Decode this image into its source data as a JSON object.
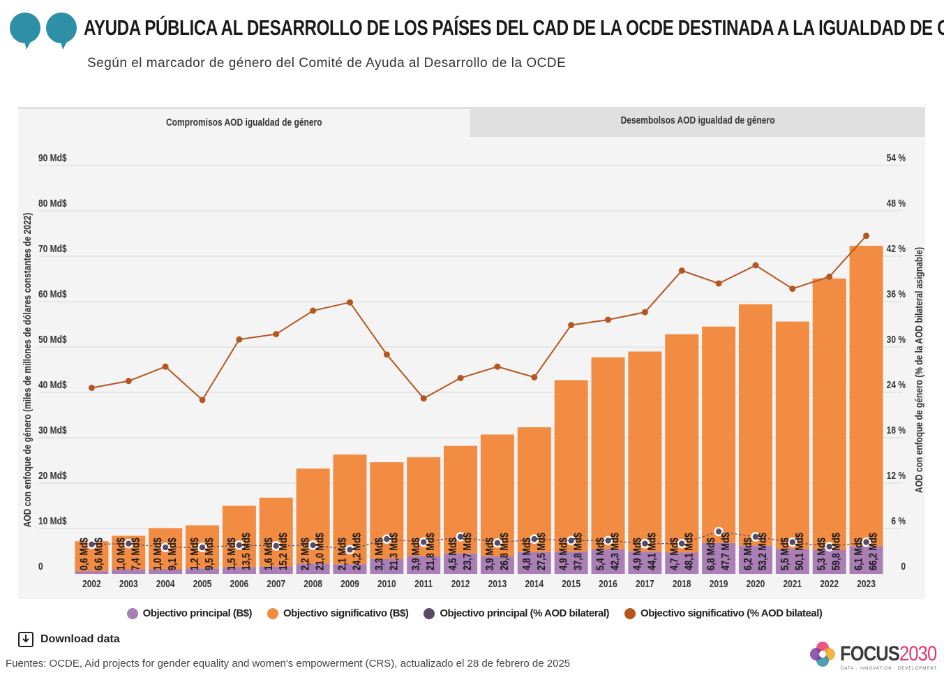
{
  "header": {
    "title": "AYUDA PÚBLICA AL DESARROLLO DE LOS PAÍSES DEL CAD DE LA OCDE DESTINADA A LA IGUALDAD DE GÉNERO",
    "subtitle": "Según el marcador de género del Comité de Ayuda al Desarrollo de la OCDE",
    "logo_color": "#2e8fa6"
  },
  "tabs": [
    {
      "label": "Compromisos AOD igualdad de género",
      "active": true
    },
    {
      "label": "Desembolsos AOD igualdad de género",
      "active": false
    }
  ],
  "chart_data": {
    "type": "bar+line",
    "stacked": true,
    "ylabel": "AOD con enfoque de género (miles de millones de dólares constantes de 2022)",
    "y2label": "AOD con enfoque de género (% de la AOD bilateral asignable)",
    "ylim": [
      0,
      90
    ],
    "y2lim": [
      0,
      54
    ],
    "yticks": [
      "0",
      "10 Md$",
      "20 Md$",
      "30 Md$",
      "40 Md$",
      "50 Md$",
      "60 Md$",
      "70 Md$",
      "80 Md$",
      "90 Md$"
    ],
    "y2ticks": [
      "0",
      "6 %",
      "12 %",
      "18 %",
      "24 %",
      "30 %",
      "36 %",
      "42 %",
      "48 %",
      "54 %"
    ],
    "grid": true,
    "legend_position": "bottom",
    "categories": [
      "2002",
      "2003",
      "2004",
      "2005",
      "2006",
      "2007",
      "2008",
      "2009",
      "2010",
      "2011",
      "2012",
      "2013",
      "2014",
      "2015",
      "2016",
      "2017",
      "2018",
      "2019",
      "2020",
      "2021",
      "2022",
      "2023"
    ],
    "series": [
      {
        "name": "Objectivo principal (B$)",
        "kind": "bar",
        "axis": "left",
        "color": "#a97fb5",
        "values": [
          0.6,
          1.0,
          1.0,
          1.2,
          1.5,
          1.6,
          2.2,
          2.1,
          3.3,
          3.9,
          4.5,
          3.9,
          4.8,
          4.9,
          5.4,
          4.9,
          4.7,
          6.8,
          6.2,
          5.5,
          5.3,
          6.1
        ]
      },
      {
        "name": "Objectivo significativo (B$)",
        "kind": "bar",
        "axis": "left",
        "color": "#f28c42",
        "values": [
          6.6,
          7.4,
          9.1,
          9.5,
          13.5,
          15.2,
          21.0,
          24.2,
          21.3,
          21.8,
          23.7,
          26.8,
          27.5,
          37.8,
          42.3,
          44.1,
          48.1,
          47.7,
          53.2,
          50.1,
          59.8,
          66.2
        ]
      },
      {
        "name": "Objectivo principal (% AOD bilateral)",
        "kind": "line",
        "axis": "right",
        "color": "#5a4a66",
        "values": [
          3.9,
          4.0,
          3.5,
          3.5,
          3.8,
          3.7,
          3.8,
          3.2,
          4.6,
          4.2,
          4.9,
          4.1,
          4.6,
          4.4,
          4.4,
          4.0,
          4.0,
          5.6,
          4.9,
          4.2,
          3.6,
          4.2
        ]
      },
      {
        "name": "Objectivo significativo (% AOD bilateal)",
        "kind": "line",
        "axis": "right",
        "color": "#b5561f",
        "values": [
          24.6,
          25.5,
          27.4,
          23.0,
          31.0,
          31.7,
          34.8,
          35.9,
          29.0,
          23.2,
          25.9,
          27.4,
          26.0,
          32.9,
          33.6,
          34.6,
          40.1,
          38.4,
          40.8,
          37.7,
          39.3,
          44.7
        ]
      }
    ],
    "value_suffix": " Md$"
  },
  "legend": [
    {
      "label": "Objectivo principal (B$)",
      "color": "#a97fb5"
    },
    {
      "label": "Objectivo significativo (B$)",
      "color": "#f28c42"
    },
    {
      "label": "Objectivo principal (% AOD bilateral)",
      "color": "#5a4a66"
    },
    {
      "label": "Objectivo significativo (% AOD bilateal)",
      "color": "#b5561f"
    }
  ],
  "footer": {
    "download_label": "Download data",
    "source": "Fuentes: OCDE, Aid projects for gender equality and women's empowerment (CRS), actualizado el 28 de febrero de 2025",
    "brand_prefix": "FOCUS",
    "brand_suffix": "2030",
    "brand_tagline": "DATA · INNOVATION · DEVELOPMENT"
  }
}
